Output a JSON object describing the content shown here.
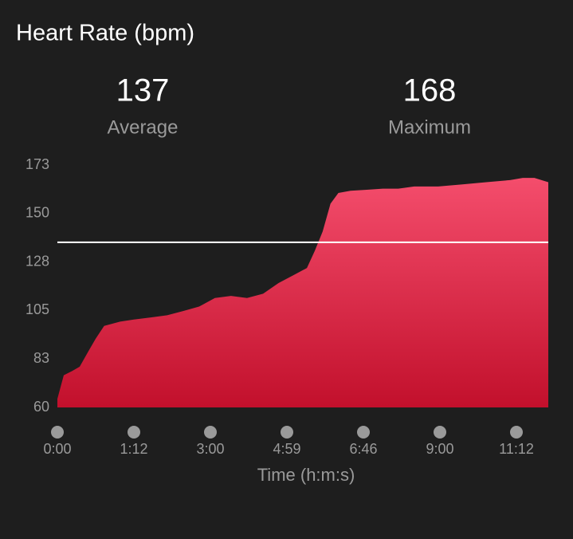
{
  "chart_data": {
    "type": "area",
    "title": "Heart Rate (bpm)",
    "summary": [
      {
        "value": 137,
        "label": "Average"
      },
      {
        "value": 168,
        "label": "Maximum"
      }
    ],
    "x_label": "Time (h:m:s)",
    "x": [
      0,
      6,
      14,
      21,
      29,
      36,
      44,
      59,
      72,
      97,
      119,
      142,
      164,
      187,
      212,
      237,
      262,
      286,
      310,
      327,
      338,
      349,
      360,
      371,
      388,
      412,
      440,
      467,
      495,
      537,
      579,
      620,
      661,
      683,
      703,
      727
    ],
    "values": [
      64,
      75,
      77,
      79,
      86,
      92,
      98,
      100,
      101,
      102,
      103,
      105,
      107,
      111,
      112,
      111,
      113,
      118,
      122,
      125,
      133,
      142,
      155,
      160,
      161,
      161.5,
      162,
      162,
      163,
      163,
      164,
      165,
      166,
      167,
      167,
      165
    ],
    "xlim": [
      0,
      727
    ],
    "xticks": [
      {
        "value": 0,
        "label": "0:00"
      },
      {
        "value": 72,
        "label": "1:12"
      },
      {
        "value": 180,
        "label": "3:00"
      },
      {
        "value": 299,
        "label": "4:59"
      },
      {
        "value": 406,
        "label": "6:46"
      },
      {
        "value": 540,
        "label": "9:00"
      },
      {
        "value": 672,
        "label": "11:12"
      }
    ],
    "ylim": [
      60,
      173
    ],
    "yticks": [
      60,
      {
        "value": 82.6,
        "label": "83"
      },
      {
        "value": 105.2,
        "label": "105"
      },
      {
        "value": 127.8,
        "label": "128"
      },
      {
        "value": 150.4,
        "label": "150"
      },
      173
    ],
    "colors": [
      "#f44d6c",
      "#c2102c"
    ],
    "average_line_color": "#ffffff"
  }
}
